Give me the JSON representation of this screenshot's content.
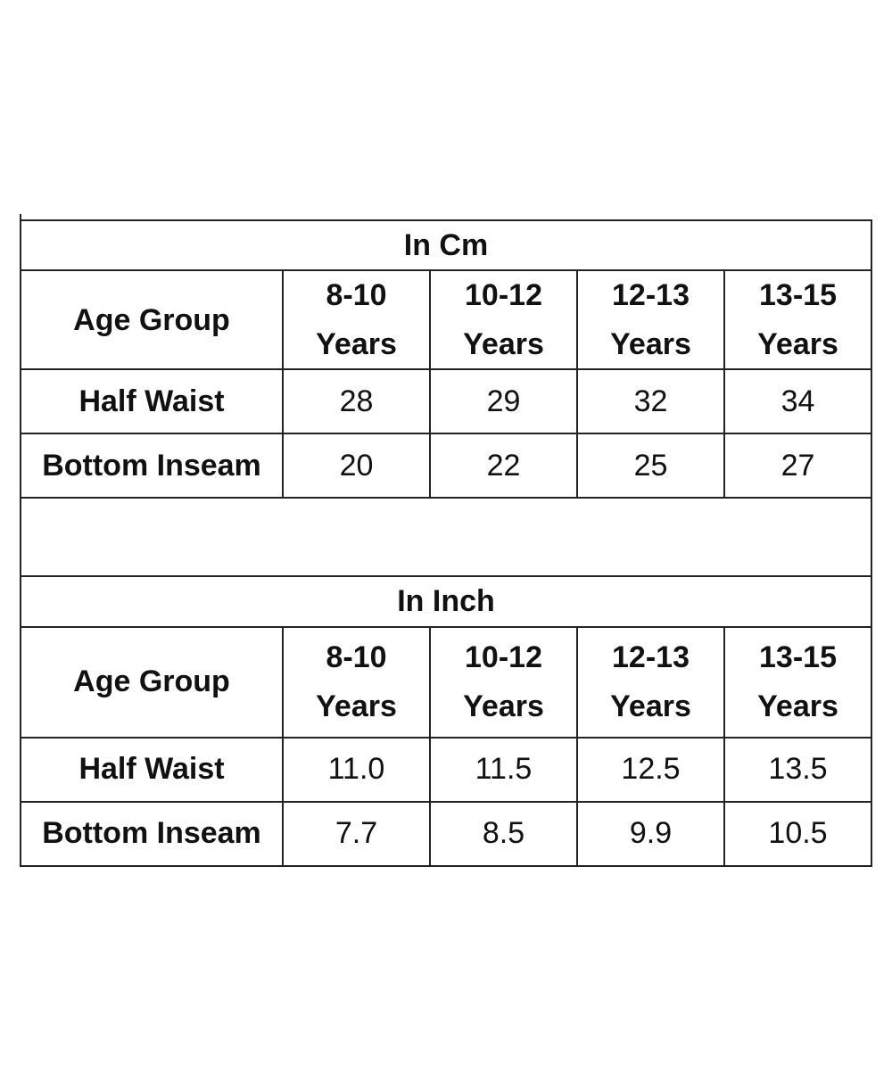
{
  "cm": {
    "title": "In Cm",
    "row_header": "Age Group",
    "columns": [
      {
        "range": "8-10",
        "unit": "Years"
      },
      {
        "range": "10-12",
        "unit": "Years"
      },
      {
        "range": "12-13",
        "unit": "Years"
      },
      {
        "range": "13-15",
        "unit": "Years"
      }
    ],
    "rows": [
      {
        "label": "Half Waist",
        "values": [
          "28",
          "29",
          "32",
          "34"
        ]
      },
      {
        "label": "Bottom Inseam",
        "values": [
          "20",
          "22",
          "25",
          "27"
        ]
      }
    ]
  },
  "inch": {
    "title": "In Inch",
    "row_header": "Age Group",
    "columns": [
      {
        "range": "8-10",
        "unit": "Years"
      },
      {
        "range": "10-12",
        "unit": "Years"
      },
      {
        "range": "12-13",
        "unit": "Years"
      },
      {
        "range": "13-15",
        "unit": "Years"
      }
    ],
    "rows": [
      {
        "label": "Half Waist",
        "values": [
          "11.0",
          "11.5",
          "12.5",
          "13.5"
        ]
      },
      {
        "label": "Bottom Inseam",
        "values": [
          "7.7",
          "8.5",
          "9.9",
          "10.5"
        ]
      }
    ]
  }
}
